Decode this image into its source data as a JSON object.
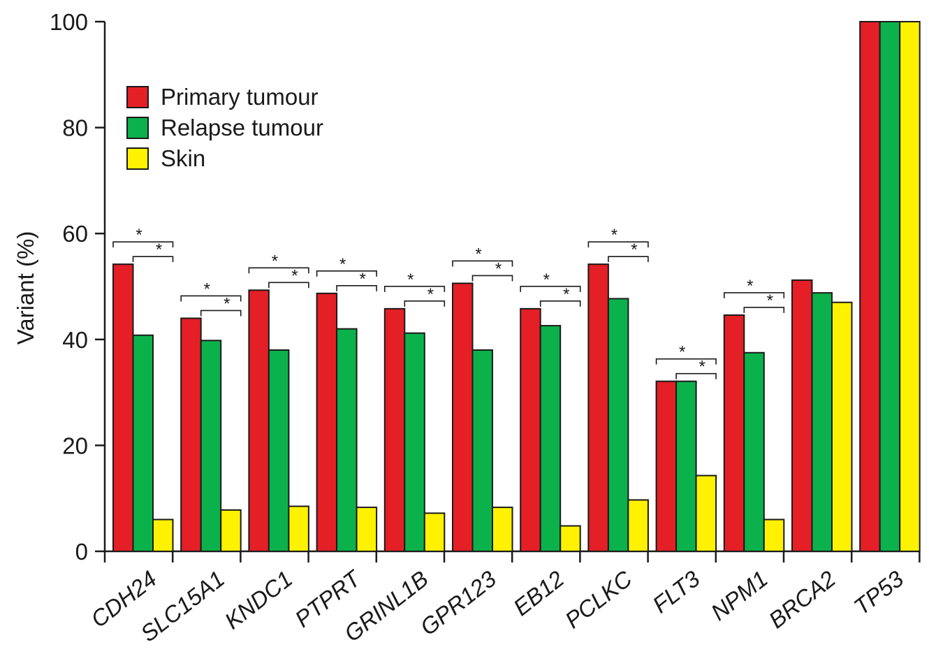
{
  "chart_data": {
    "type": "bar",
    "ylabel": "Variant (%)",
    "xlabel": "",
    "ylim": [
      0,
      100
    ],
    "yticks": [
      "0",
      "20",
      "40",
      "60",
      "80",
      "100"
    ],
    "categories": [
      "CDH24",
      "SLC15A1",
      "KNDC1",
      "PTPRT",
      "GRINL1B",
      "GPR123",
      "EB12",
      "PCLKC",
      "FLT3",
      "NPM1",
      "BRCA2",
      "TP53"
    ],
    "series": [
      {
        "name": "Primary tumour",
        "color": "#e41f26",
        "values": [
          54.2,
          44.0,
          49.3,
          48.7,
          45.8,
          50.6,
          45.8,
          54.2,
          32.1,
          44.6,
          51.2,
          100
        ]
      },
      {
        "name": "Relapse tumour",
        "color": "#0bb14b",
        "values": [
          40.8,
          39.8,
          38.0,
          42.0,
          41.2,
          38.0,
          42.6,
          47.7,
          32.1,
          37.5,
          48.8,
          100
        ]
      },
      {
        "name": "Skin",
        "color": "#fff200",
        "values": [
          6.0,
          7.8,
          8.5,
          8.3,
          7.2,
          8.3,
          4.8,
          9.7,
          14.3,
          6.0,
          47.0,
          100
        ]
      }
    ],
    "significance_marker": "*",
    "significant_categories": [
      "CDH24",
      "SLC15A1",
      "KNDC1",
      "PTPRT",
      "GRINL1B",
      "GPR123",
      "EB12",
      "PCLKC",
      "FLT3",
      "NPM1"
    ],
    "legend_position": "top-left"
  }
}
